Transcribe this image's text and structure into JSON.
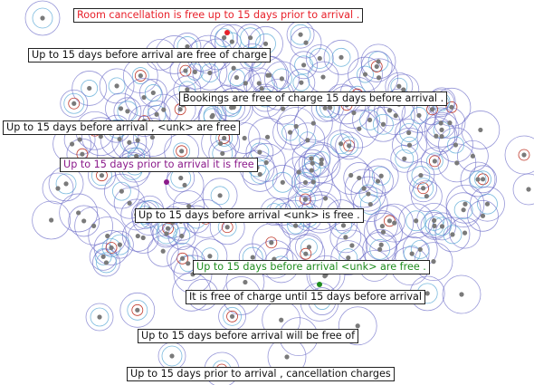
{
  "labels": [
    {
      "text": "Room cancellation is free up to 15 days prior to arrival .",
      "color": "#e8202a"
    },
    {
      "text": "Up to 15 days before arrival are free of charge",
      "color": "#111111"
    },
    {
      "text": "Bookings are free of charge 15 days before arrival .",
      "color": "#111111"
    },
    {
      "text": "Up to 15 days before arrival , <unk> are free",
      "color": "#111111"
    },
    {
      "text": "Up to 15 days prior to arrival it is free",
      "color": "#8b1a8b"
    },
    {
      "text": "Up to 15 days before arrival <unk> is free .",
      "color": "#111111"
    },
    {
      "text": "Up to 15 days before arrival <unk> are free .",
      "color": "#1e8c1e"
    },
    {
      "text": "It is free of charge until 15 days before arrival",
      "color": "#111111"
    },
    {
      "text": "Up to 15 days before arrival will be free of",
      "color": "#111111"
    },
    {
      "text": "Up to 15 days prior to arrival , cancellation charges",
      "color": "#111111"
    }
  ],
  "highlight_points": [
    {
      "label_index": 0,
      "color": "#e8202a"
    },
    {
      "label_index": 4,
      "color": "#8b1a8b"
    },
    {
      "label_index": 6,
      "color": "#1e8c1e"
    }
  ],
  "colors": {
    "point": "#7a7a7a",
    "contour_outer": "#6b6bc7",
    "contour_mid": "#5aa9d6",
    "contour_inner": "#c0392b"
  }
}
